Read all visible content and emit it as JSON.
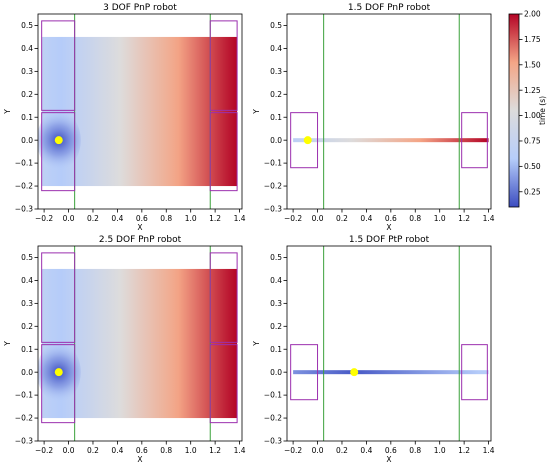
{
  "colorbar": {
    "label": "time (s)",
    "ticks": [
      0.25,
      0.5,
      0.75,
      1.0,
      1.25,
      1.5,
      1.75,
      2.0
    ],
    "tick_labels": [
      "0.25",
      "0.50",
      "0.75",
      "1.00",
      "1.25",
      "1.50",
      "1.75",
      "2.00"
    ],
    "range": [
      0.1,
      2.0
    ],
    "colormap": [
      "#3b4cc0",
      "#b6cdfa",
      "#dddcdc",
      "#f4a586",
      "#b40426"
    ]
  },
  "colors": {
    "wall_line": "#3aa13a",
    "box_outline": "#9b2fae",
    "marker": "#ffff00",
    "axis": "#000000"
  },
  "chart_data": [
    {
      "type": "heatmap",
      "title": "3 DOF PnP robot",
      "xlabel": "X",
      "ylabel": "Y",
      "xlim": [
        -0.25,
        1.42
      ],
      "ylim": [
        -0.3,
        0.55
      ],
      "xticks": [
        -0.2,
        0.0,
        0.2,
        0.4,
        0.6,
        0.8,
        1.0,
        1.2,
        1.4
      ],
      "xtick_labels": [
        "−0.2",
        "0.0",
        "0.2",
        "0.4",
        "0.6",
        "0.8",
        "1.0",
        "1.2",
        "1.4"
      ],
      "yticks": [
        -0.3,
        -0.2,
        -0.1,
        0.0,
        0.1,
        0.2,
        0.3,
        0.4,
        0.5
      ],
      "ytick_labels": [
        "−0.3",
        "−0.2",
        "−0.1",
        "0.0",
        "0.1",
        "0.2",
        "0.3",
        "0.4",
        "0.5"
      ],
      "field": {
        "x_range": [
          -0.22,
          1.38
        ],
        "y_range": [
          -0.2,
          0.45
        ],
        "origin": [
          -0.08,
          0.0
        ],
        "max_time": 2.0
      },
      "start_point": {
        "x": -0.08,
        "y": 0.0
      },
      "vertical_lines_x": [
        0.05,
        1.16
      ],
      "boxes": [
        {
          "x": [
            -0.22,
            0.05
          ],
          "y": [
            0.13,
            0.52
          ]
        },
        {
          "x": [
            -0.22,
            0.05
          ],
          "y": [
            -0.22,
            0.12
          ]
        },
        {
          "x": [
            1.16,
            1.38
          ],
          "y": [
            0.13,
            0.52
          ]
        },
        {
          "x": [
            1.16,
            1.38
          ],
          "y": [
            -0.22,
            0.12
          ]
        }
      ]
    },
    {
      "type": "heatmap",
      "title": "1.5 DOF PnP robot",
      "xlabel": "X",
      "ylabel": "Y",
      "xlim": [
        -0.25,
        1.42
      ],
      "ylim": [
        -0.3,
        0.55
      ],
      "xticks": [
        -0.2,
        0.0,
        0.2,
        0.4,
        0.6,
        0.8,
        1.0,
        1.2,
        1.4
      ],
      "xtick_labels": [
        "−0.2",
        "0.0",
        "0.2",
        "0.4",
        "0.6",
        "0.8",
        "1.0",
        "1.2",
        "1.4"
      ],
      "yticks": [
        -0.3,
        -0.2,
        -0.1,
        0.0,
        0.1,
        0.2,
        0.3,
        0.4,
        0.5
      ],
      "ytick_labels": [
        "−0.3",
        "−0.2",
        "−0.1",
        "0.0",
        "0.1",
        "0.2",
        "0.3",
        "0.4",
        "0.5"
      ],
      "path": {
        "x_range": [
          -0.2,
          1.4
        ],
        "y": 0.0,
        "time_range": [
          0.65,
          2.0
        ]
      },
      "start_point": {
        "x": -0.08,
        "y": 0.0
      },
      "vertical_lines_x": [
        0.05,
        1.16
      ],
      "boxes": [
        {
          "x": [
            -0.22,
            0.0
          ],
          "y": [
            -0.12,
            0.12
          ]
        },
        {
          "x": [
            1.18,
            1.39
          ],
          "y": [
            -0.12,
            0.12
          ]
        }
      ]
    },
    {
      "type": "heatmap",
      "title": "2.5 DOF PnP robot",
      "xlabel": "X",
      "ylabel": "Y",
      "xlim": [
        -0.25,
        1.42
      ],
      "ylim": [
        -0.3,
        0.55
      ],
      "xticks": [
        -0.2,
        0.0,
        0.2,
        0.4,
        0.6,
        0.8,
        1.0,
        1.2,
        1.4
      ],
      "xtick_labels": [
        "−0.2",
        "0.0",
        "0.2",
        "0.4",
        "0.6",
        "0.8",
        "1.0",
        "1.2",
        "1.4"
      ],
      "yticks": [
        -0.3,
        -0.2,
        -0.1,
        0.0,
        0.1,
        0.2,
        0.3,
        0.4,
        0.5
      ],
      "ytick_labels": [
        "−0.3",
        "−0.2",
        "−0.1",
        "0.0",
        "0.1",
        "0.2",
        "0.3",
        "0.4",
        "0.5"
      ],
      "field": {
        "x_range": [
          -0.22,
          1.38
        ],
        "y_range": [
          -0.2,
          0.45
        ],
        "origin": [
          -0.08,
          0.0
        ],
        "max_time": 2.0
      },
      "start_point": {
        "x": -0.08,
        "y": 0.0
      },
      "vertical_lines_x": [
        0.05,
        1.16
      ],
      "boxes": [
        {
          "x": [
            -0.22,
            0.05
          ],
          "y": [
            0.13,
            0.52
          ]
        },
        {
          "x": [
            -0.22,
            0.05
          ],
          "y": [
            -0.22,
            0.12
          ]
        },
        {
          "x": [
            1.16,
            1.38
          ],
          "y": [
            0.13,
            0.52
          ]
        },
        {
          "x": [
            1.16,
            1.38
          ],
          "y": [
            -0.22,
            0.12
          ]
        }
      ]
    },
    {
      "type": "heatmap",
      "title": "1.5 DOF PtP robot",
      "xlabel": "X",
      "ylabel": "Y",
      "xlim": [
        -0.25,
        1.42
      ],
      "ylim": [
        -0.3,
        0.55
      ],
      "xticks": [
        -0.2,
        0.0,
        0.2,
        0.4,
        0.6,
        0.8,
        1.0,
        1.2,
        1.4
      ],
      "xtick_labels": [
        "−0.2",
        "0.0",
        "0.2",
        "0.4",
        "0.6",
        "0.8",
        "1.0",
        "1.2",
        "1.4"
      ],
      "yticks": [
        -0.3,
        -0.2,
        -0.1,
        0.0,
        0.1,
        0.2,
        0.3,
        0.4,
        0.5
      ],
      "ytick_labels": [
        "−0.3",
        "−0.2",
        "−0.1",
        "0.0",
        "0.1",
        "0.2",
        "0.3",
        "0.4",
        "0.5"
      ],
      "path": {
        "x_range": [
          -0.2,
          1.4
        ],
        "y": 0.0,
        "time_range": [
          0.15,
          0.6
        ],
        "center_x": 0.3
      },
      "start_point": {
        "x": 0.3,
        "y": 0.0
      },
      "vertical_lines_x": [
        0.05,
        1.16
      ],
      "boxes": [
        {
          "x": [
            -0.22,
            0.0
          ],
          "y": [
            -0.12,
            0.12
          ]
        },
        {
          "x": [
            1.18,
            1.39
          ],
          "y": [
            -0.12,
            0.12
          ]
        }
      ]
    }
  ]
}
